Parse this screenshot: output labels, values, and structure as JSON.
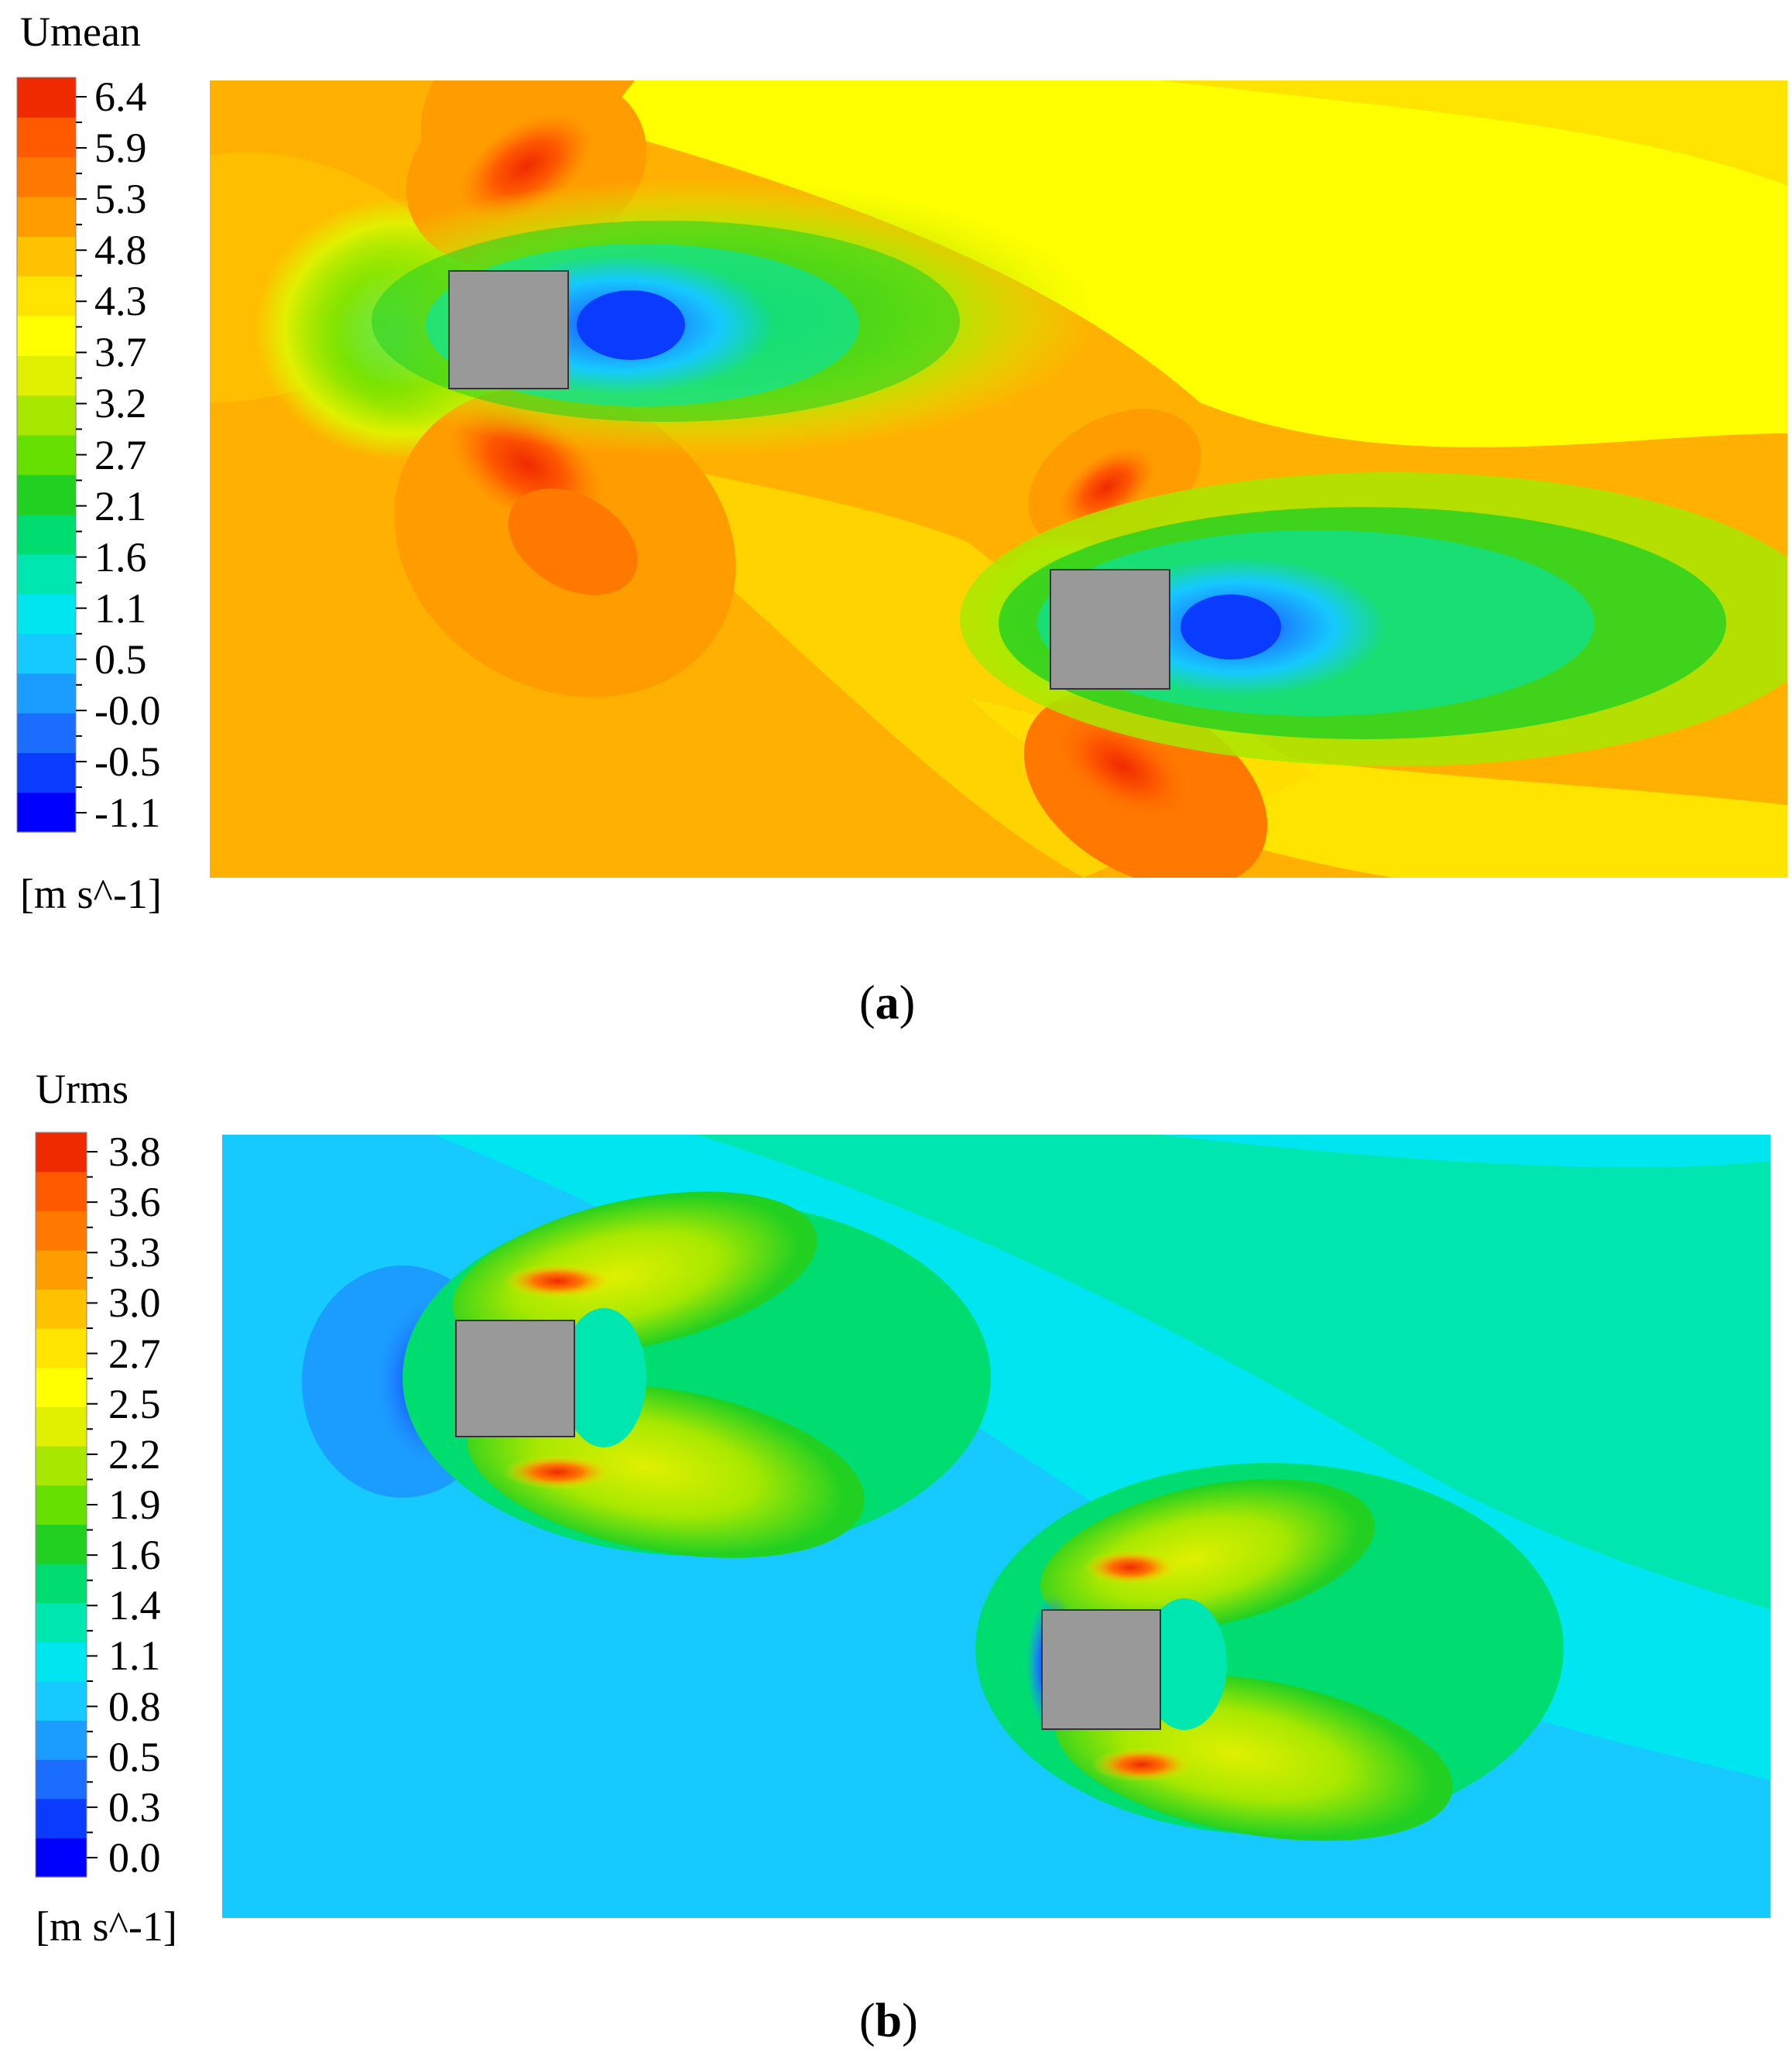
{
  "chart_data": [
    {
      "type": "heatmap",
      "title": "Umean",
      "unit": "[m s^-1]",
      "colorbar_ticks": [
        "6.4",
        "5.9",
        "5.3",
        "4.8",
        "4.3",
        "3.7",
        "3.2",
        "2.7",
        "2.1",
        "1.6",
        "1.1",
        "0.5",
        "-0.0",
        "-0.5",
        "-1.1"
      ],
      "colorbar_range": [
        -1.1,
        6.4
      ],
      "caption_letter": "a",
      "obstacles": 2,
      "colors": [
        "#0000ff",
        "#0a3cff",
        "#1a6dff",
        "#1b9dff",
        "#16c9ff",
        "#00e6f0",
        "#00e6b0",
        "#00dd70",
        "#22d022",
        "#66e000",
        "#a8e800",
        "#e0f000",
        "#ffff00",
        "#ffe400",
        "#ffc200",
        "#ff9c00",
        "#ff7800",
        "#ff5a00",
        "#f02a00"
      ]
    },
    {
      "type": "heatmap",
      "title": "Urms",
      "unit": "[m s^-1]",
      "colorbar_ticks": [
        "3.8",
        "3.6",
        "3.3",
        "3.0",
        "2.7",
        "2.5",
        "2.2",
        "1.9",
        "1.6",
        "1.4",
        "1.1",
        "0.8",
        "0.5",
        "0.3",
        "0.0"
      ],
      "colorbar_range": [
        0.0,
        3.8
      ],
      "caption_letter": "b",
      "obstacles": 2,
      "colors": [
        "#0000ff",
        "#0a3cff",
        "#1a6dff",
        "#1b9dff",
        "#16c9ff",
        "#00e6f0",
        "#00e6b0",
        "#00dd70",
        "#22d022",
        "#66e000",
        "#a8e800",
        "#e0f000",
        "#ffff00",
        "#ffe400",
        "#ffc200",
        "#ff9c00",
        "#ff7800",
        "#ff5a00",
        "#f02a00"
      ]
    }
  ]
}
